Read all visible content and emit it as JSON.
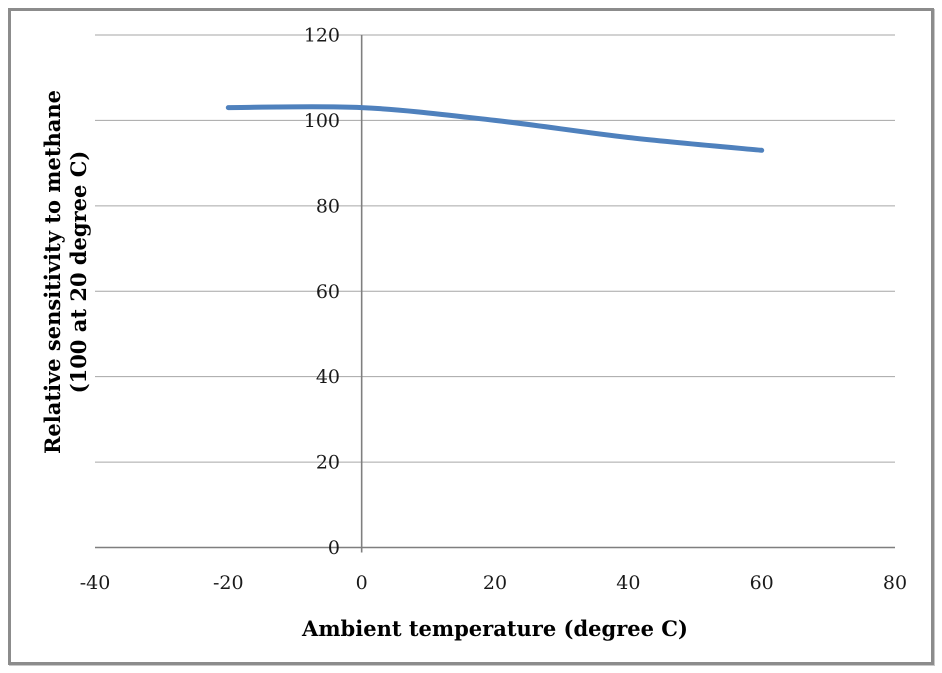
{
  "window": {
    "background_color": "#ffffff",
    "border_color": "#8c8c8c"
  },
  "chart_data": {
    "type": "line",
    "title": "",
    "xlabel": "Ambient temperature (degree C)",
    "ylabel": "Relative sensitivity to methane (100 at 20 degree C)",
    "ylabel_lines": [
      "Relative sensitivity to methane",
      "(100 at 20 degree C)"
    ],
    "series": [
      {
        "name": "relative-sensitivity-to-methane",
        "x": [
          -20,
          0,
          20,
          40,
          60
        ],
        "y": [
          103,
          103,
          100,
          96,
          93
        ],
        "color": "#4F81BD",
        "line_width": 5,
        "smooth": true
      }
    ],
    "xlim": [
      -40,
      80
    ],
    "ylim": [
      0,
      120
    ],
    "x_ticks": [
      -40,
      -20,
      0,
      20,
      40,
      60,
      80
    ],
    "y_ticks": [
      0,
      20,
      40,
      60,
      80,
      100,
      120
    ],
    "grid": "horizontal-major-only",
    "gridline_color": "#a6a6a6",
    "axis_color": "#7f7f7f",
    "y_axis_crosses_at_x": 0,
    "legend": "none"
  }
}
